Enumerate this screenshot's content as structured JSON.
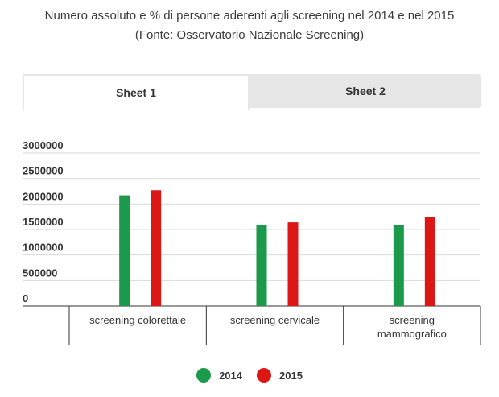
{
  "header": {
    "title_line1": "Numero assoluto e % di persone aderenti agli screening nel 2014 e nel 2015",
    "title_line2": "(Fonte: Osservatorio Nazionale Screening)"
  },
  "tabs": [
    {
      "label": "Sheet 1",
      "active": true
    },
    {
      "label": "Sheet 2",
      "active": false
    }
  ],
  "chart_data": {
    "type": "bar",
    "title": "Numero assoluto e % di persone aderenti agli screening nel 2014 e nel 2015",
    "subtitle": "(Fonte: Osservatorio Nazionale Screening)",
    "categories": [
      [
        "screening colorettale"
      ],
      [
        "screening cervicale"
      ],
      [
        "screening",
        "mammografico"
      ]
    ],
    "series": [
      {
        "name": "2014",
        "color": "#1a9a4a",
        "values": [
          2170000,
          1590000,
          1590000
        ]
      },
      {
        "name": "2015",
        "color": "#dd1616",
        "values": [
          2270000,
          1640000,
          1740000
        ]
      }
    ],
    "ylim": [
      0,
      3000000
    ],
    "yticks": [
      "3000000",
      "2500000",
      "2000000",
      "1500000",
      "1000000",
      "500000",
      "0"
    ],
    "ytick_values": [
      3000000,
      2500000,
      2000000,
      1500000,
      1000000,
      500000,
      0
    ],
    "grid": true,
    "legend_position": "bottom"
  }
}
